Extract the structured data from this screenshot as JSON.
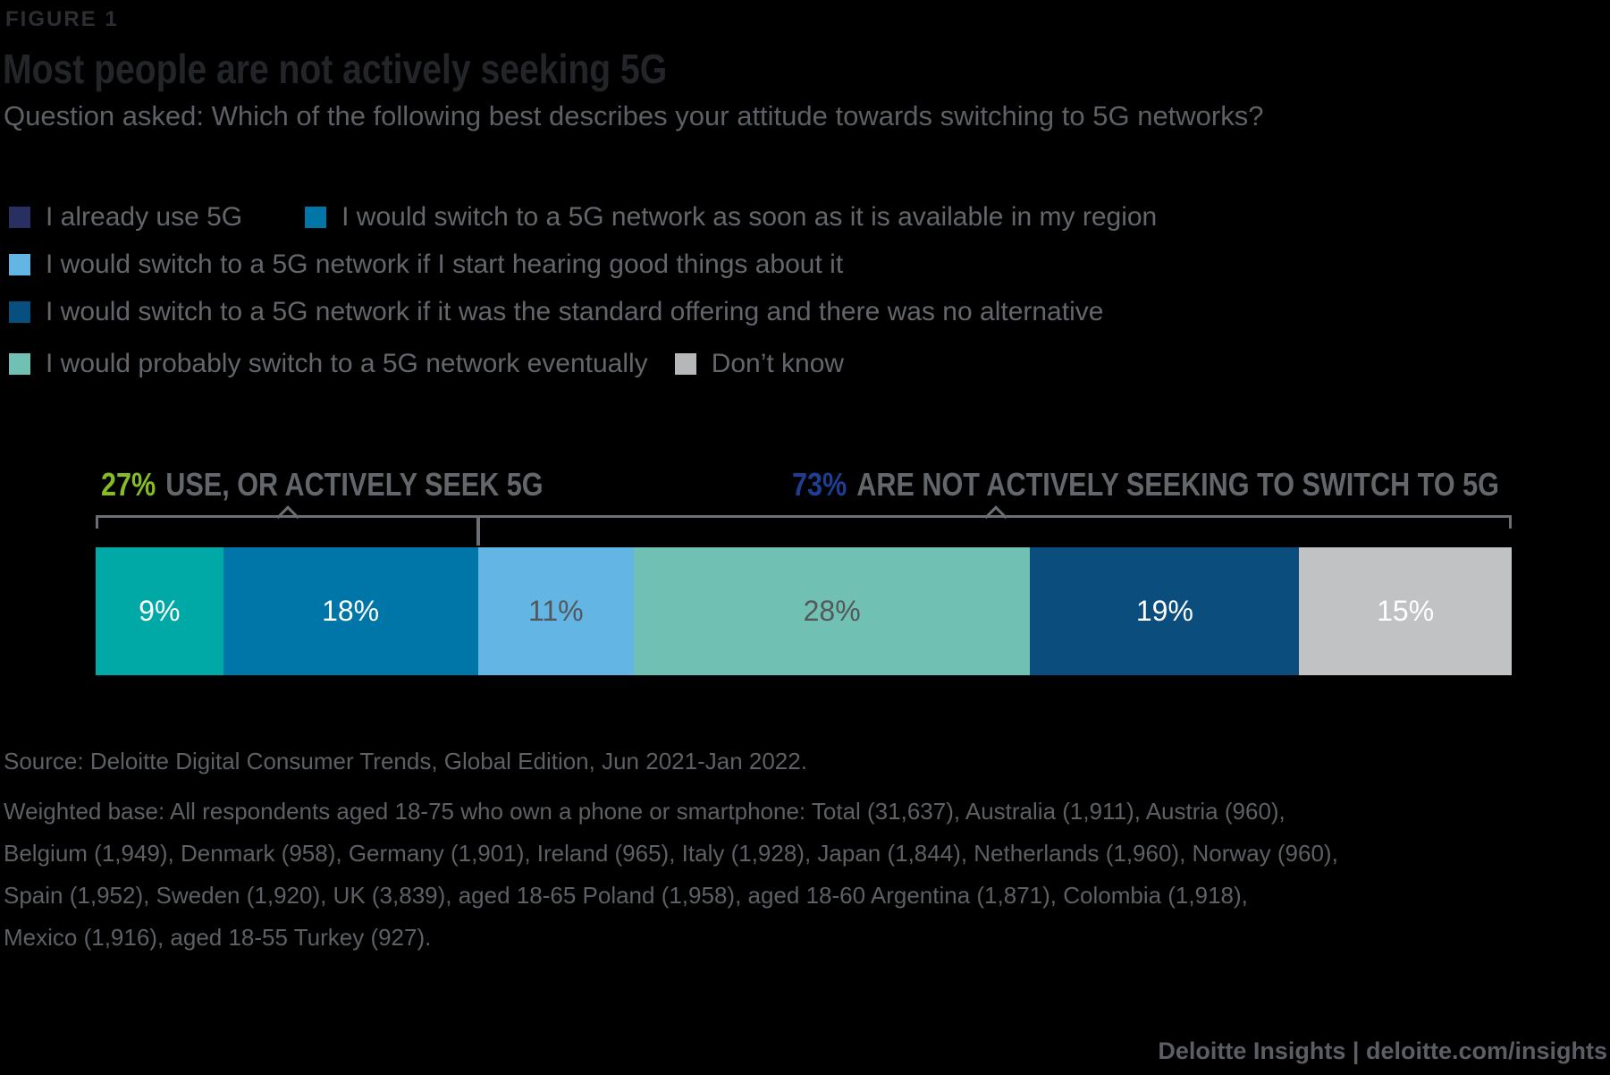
{
  "figure_label": "FIGURE 1",
  "title": "Most people are not actively seeking 5G",
  "subtitle": "Question asked: Which of the following best describes your attitude towards switching to 5G networks?",
  "legend": {
    "rows": [
      {
        "items": [
          {
            "label": "I already use 5G",
            "color": "#293061"
          },
          {
            "label": "I would switch to a 5G network as soon as it is available in my region",
            "color": "#0076A8"
          }
        ]
      },
      {
        "items": [
          {
            "label": "I would switch to a 5G network if I start hearing good things about it",
            "color": "#63B5E3"
          }
        ]
      },
      {
        "items": [
          {
            "label": "I would switch to a 5G network if it was the standard offering and there was no alternative",
            "color": "#074F7F"
          }
        ]
      },
      {
        "items": [
          {
            "label": "I would probably switch to a 5G network eventually",
            "color": "#70C1B3"
          },
          {
            "label": "Don’t know",
            "color": "#B5B7B9"
          }
        ]
      }
    ]
  },
  "chart_data": {
    "type": "bar",
    "orientation": "horizontal-stacked",
    "unit": "%",
    "title": "Most people are not actively seeking 5G",
    "segments": [
      {
        "label": "I already use 5G",
        "value": 9,
        "color": "#00A9A6",
        "text_color": "#FFFFFF"
      },
      {
        "label": "I would switch to a 5G network as soon as it is available in my region",
        "value": 18,
        "color": "#0076A8",
        "text_color": "#FFFFFF"
      },
      {
        "label": "I would switch to a 5G network if I start hearing good things about it",
        "value": 11,
        "color": "#63B5E3",
        "text_color": "#54575B"
      },
      {
        "label": "I would probably switch to a 5G network eventually",
        "value": 28,
        "color": "#70C1B3",
        "text_color": "#54575B"
      },
      {
        "label": "I would switch to a 5G network if it was the standard offering and there was no alternative",
        "value": 19,
        "color": "#0B4D7D",
        "text_color": "#FFFFFF"
      },
      {
        "label": "Don’t know",
        "value": 15,
        "color": "#C0C2C4",
        "text_color": "#FFFFFF"
      }
    ],
    "groups": [
      {
        "pct": "27%",
        "pct_color": "#86BC25",
        "label": "USE, OR ACTIVELY SEEK 5G",
        "span": 27
      },
      {
        "pct": "73%",
        "pct_color": "#1E3E93",
        "label": "ARE NOT ACTIVELY SEEKING TO SWITCH TO 5G",
        "span": 73
      }
    ]
  },
  "source": {
    "text": "Source: Deloitte Digital Consumer Trends, Global Edition, Jun 2021-Jan 2022."
  },
  "weighted_base": {
    "lines": [
      "Weighted base: All respondents aged 18-75 who own a phone or smartphone: Total (31,637), Australia (1,911), Austria (960),",
      "Belgium (1,949), Denmark (958), Germany (1,901), Ireland (965), Italy (1,928), Japan (1,844),  Netherlands (1,960),  Norway (960),",
      "Spain (1,952), Sweden (1,920), UK (3,839), aged 18-65 Poland (1,958), aged 18-60 Argentina (1,871), Colombia (1,918),",
      "Mexico (1,916), aged 18-55 Turkey (927)."
    ]
  },
  "footer": {
    "text": "Deloitte Insights | deloitte.com/insights"
  }
}
